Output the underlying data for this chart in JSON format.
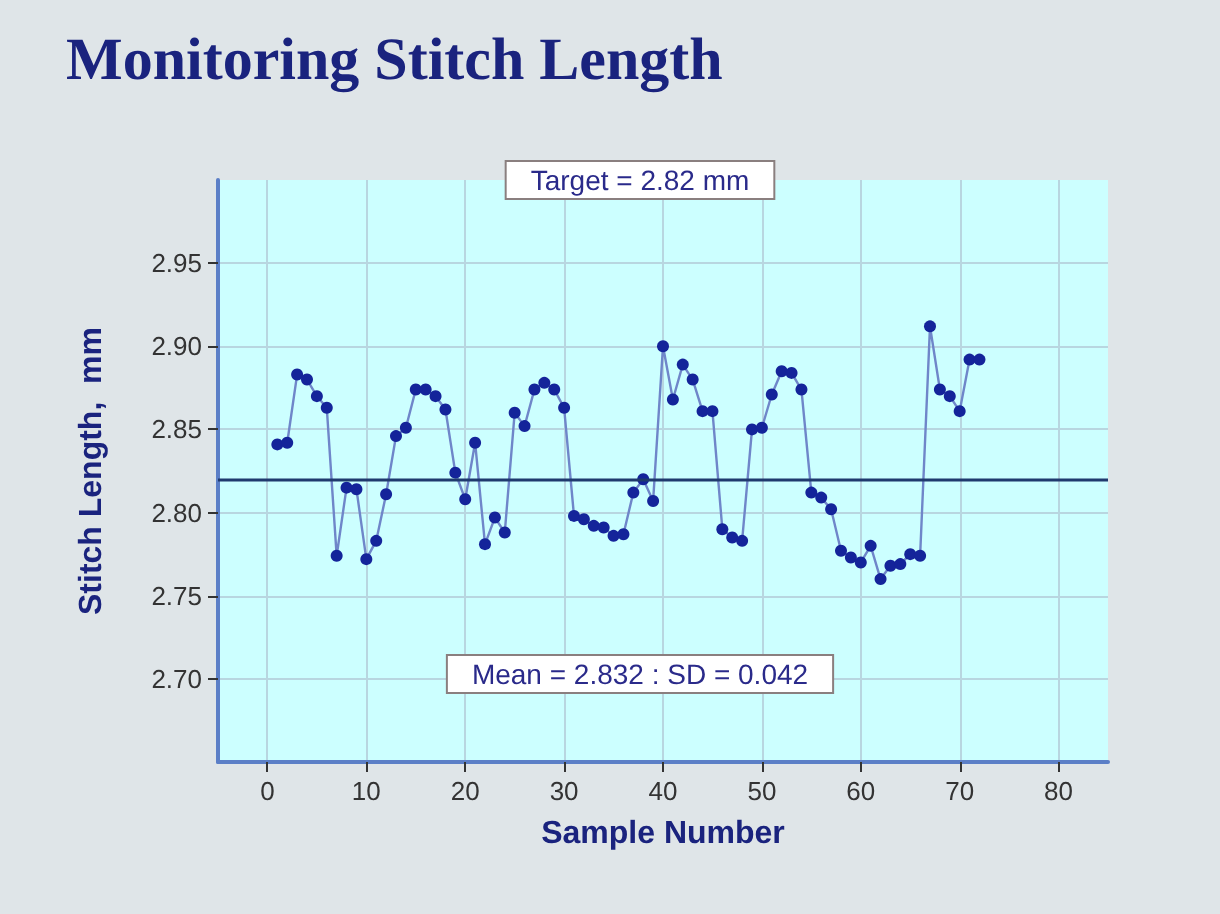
{
  "chart_data": {
    "type": "line",
    "title": "Monitoring Stitch Length",
    "xlabel": "Sample Number",
    "ylabel": "Stitch Length,  mm",
    "x": [
      1,
      2,
      3,
      4,
      5,
      6,
      7,
      8,
      9,
      10,
      11,
      12,
      13,
      14,
      15,
      16,
      17,
      18,
      19,
      20,
      21,
      22,
      23,
      24,
      25,
      26,
      27,
      28,
      29,
      30,
      31,
      32,
      33,
      34,
      35,
      36,
      37,
      38,
      39,
      40,
      41,
      42,
      43,
      44,
      45,
      46,
      47,
      48,
      49,
      50,
      51,
      52,
      53,
      54,
      55,
      56,
      57,
      58,
      59,
      60,
      61,
      62,
      63,
      64,
      65,
      66,
      67,
      68,
      69,
      70,
      71,
      72
    ],
    "series": [
      {
        "color": "#14249a",
        "values": [
          2.841,
          2.842,
          2.883,
          2.88,
          2.87,
          2.863,
          2.774,
          2.815,
          2.814,
          2.772,
          2.783,
          2.811,
          2.846,
          2.851,
          2.874,
          2.874,
          2.87,
          2.862,
          2.824,
          2.808,
          2.842,
          2.781,
          2.797,
          2.788,
          2.86,
          2.852,
          2.874,
          2.878,
          2.874,
          2.863,
          2.798,
          2.796,
          2.792,
          2.791,
          2.786,
          2.787,
          2.812,
          2.82,
          2.807,
          2.9,
          2.868,
          2.889,
          2.88,
          2.861,
          2.861,
          2.79,
          2.785,
          2.783,
          2.85,
          2.851,
          2.871,
          2.885,
          2.884,
          2.874,
          2.812,
          2.809,
          2.802,
          2.777,
          2.773,
          2.77,
          2.78,
          2.76,
          2.768,
          2.769,
          2.775,
          2.774,
          2.912,
          2.874,
          2.87,
          2.861,
          2.892,
          2.892
        ]
      }
    ],
    "xlim": [
      -5,
      85
    ],
    "xticks": [
      0,
      10,
      20,
      30,
      40,
      50,
      60,
      70,
      80
    ],
    "ylim": [
      2.65,
      3.0
    ],
    "yticks": [
      {
        "value": 2.7,
        "label": "2.70"
      },
      {
        "value": 2.75,
        "label": "2.75"
      },
      {
        "value": 2.8,
        "label": "2.80"
      },
      {
        "value": 2.85,
        "label": "2.85"
      },
      {
        "value": 2.9,
        "label": "2.90"
      },
      {
        "value": 2.95,
        "label": "2.95"
      }
    ],
    "ref_lines": [
      {
        "axis": "y",
        "value": 2.82,
        "label": "Target = 2.82 mm",
        "color": "#1f3a6e"
      }
    ],
    "annotations": [
      "Mean = 2.832 : SD = 0.042"
    ],
    "grid": true,
    "marker": "circle",
    "line_style": "solid"
  }
}
